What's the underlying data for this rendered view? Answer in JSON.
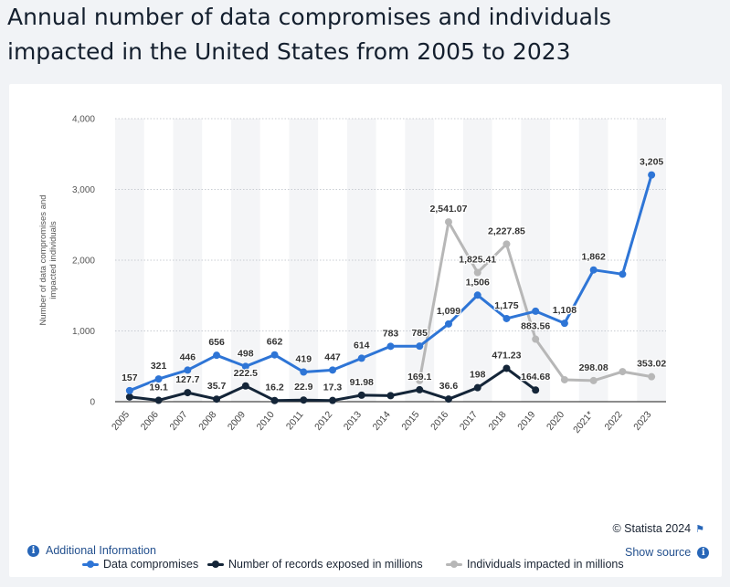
{
  "page": {
    "title": "Annual number of data compromises and individuals impacted in the United States from 2005 to 2023",
    "credit": "© Statista 2024",
    "additional_info": "Additional Information",
    "show_source": "Show source",
    "flag_icon": "flag-icon",
    "info_icon": "info-icon"
  },
  "colors": {
    "compromises": "#2e75d6",
    "records": "#142538",
    "individuals": "#b7b7b7",
    "stripe": "#f4f5f7",
    "grid": "#c8ccd2",
    "text": "#333333"
  },
  "chart_data": {
    "type": "line",
    "title": "Annual number of data compromises and individuals impacted in the United States from 2005 to 2023",
    "xlabel": "",
    "ylabel": "Number of data compromises and impacted individuals",
    "ylim": [
      0,
      4000
    ],
    "yticks": [
      0,
      1000,
      2000,
      3000,
      4000
    ],
    "ytick_labels": [
      "0",
      "1,000",
      "2,000",
      "3,000",
      "4,000"
    ],
    "grid": true,
    "legend": "bottom",
    "categories": [
      "2005",
      "2006",
      "2007",
      "2008",
      "2009",
      "2010",
      "2011",
      "2012",
      "2013",
      "2014",
      "2015",
      "2016",
      "2017",
      "2018",
      "2019",
      "2020",
      "2021*",
      "2022",
      "2023"
    ],
    "series": [
      {
        "name": "Data compromises",
        "key": "compromises",
        "values": [
          157,
          321,
          446,
          656,
          498,
          662,
          419,
          447,
          614,
          783,
          785,
          1099,
          1506,
          1175,
          1279,
          1108,
          1862,
          1802,
          3205
        ],
        "labels": [
          "157",
          "321",
          "446",
          "656",
          "498",
          "662",
          "419",
          "447",
          "614",
          "783",
          "785",
          "1,099",
          "1,506",
          "1,175",
          "",
          "1,108",
          "1,862",
          "",
          "3,205"
        ]
      },
      {
        "name": "Number of records exposed in millions",
        "key": "records",
        "values": [
          66.9,
          19.1,
          127.7,
          35.7,
          222.5,
          16.2,
          22.9,
          17.3,
          91.98,
          85.61,
          169.1,
          36.6,
          198,
          471.23,
          164.68,
          null,
          null,
          null,
          null
        ],
        "labels": [
          "",
          "19.1",
          "127.7",
          "35.7",
          "222.5",
          "16.2",
          "22.9",
          "17.3",
          "91.98",
          "",
          "169.1",
          "36.6",
          "198",
          "471.23",
          "164.68",
          "",
          "",
          "",
          ""
        ]
      },
      {
        "name": "Individuals impacted in millions",
        "key": "individuals",
        "values": [
          null,
          null,
          null,
          null,
          null,
          null,
          null,
          null,
          null,
          null,
          300,
          2541.07,
          1825.41,
          2227.85,
          883.56,
          310,
          298.08,
          425,
          353.02
        ],
        "labels": [
          "",
          "",
          "",
          "",
          "",
          "",
          "",
          "",
          "",
          "",
          "",
          "2,541.07",
          "1,825.41",
          "2,227.85",
          "883.56",
          "",
          "298.08",
          "",
          "353.02"
        ]
      }
    ]
  }
}
